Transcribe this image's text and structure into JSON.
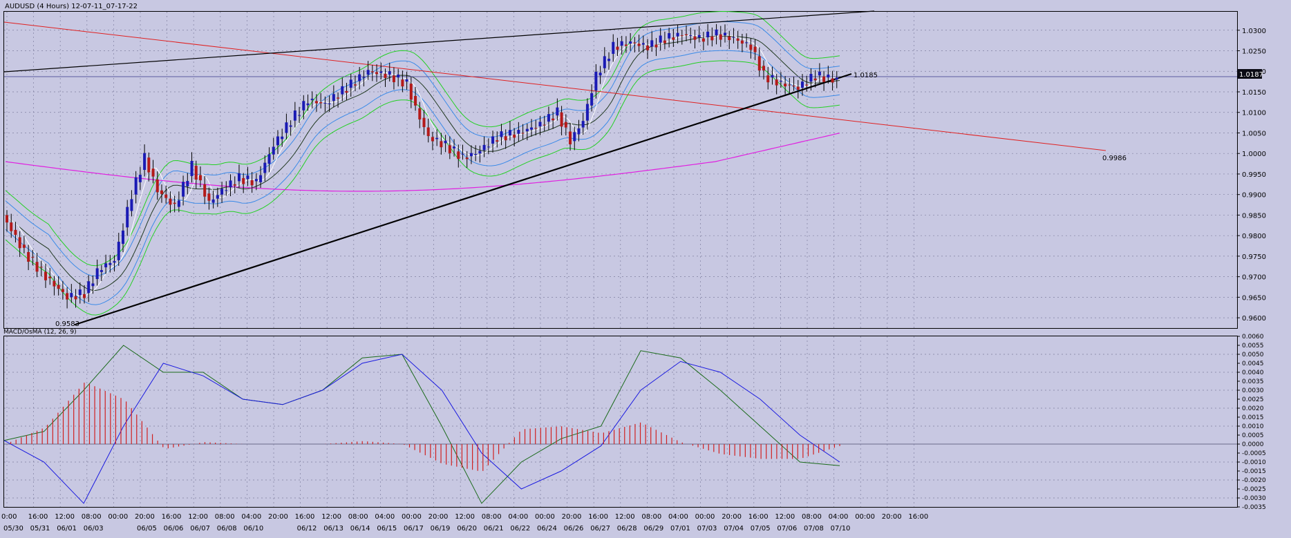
{
  "chart_data": [
    {
      "type": "candlestick",
      "title": "AUDUSD (4 Hours) 12-07-11_07-17-22",
      "ylim": [
        0.9575,
        1.0345
      ],
      "yticks": [
        "1.0300",
        "1.0250",
        "1.0200",
        "1.0150",
        "1.0100",
        "1.0050",
        "1.0000",
        "0.9950",
        "0.9900",
        "0.9850",
        "0.9800",
        "0.9750",
        "0.9700",
        "0.9650",
        "0.9600"
      ],
      "current_price": "1.0187",
      "annotations": [
        "0.9583",
        "1.0185",
        "0.9986"
      ],
      "grid": true,
      "colors": {
        "bull": "#1a1ab4",
        "bear": "#b41a1a",
        "upper_band": "#22d022",
        "inner_band": "#3a8ae8",
        "mid_band": "#203820",
        "ma_white": "#ffffff",
        "ma_long": "#e020e0",
        "trend_red": "#e02020",
        "trendline": "#000000"
      }
    },
    {
      "type": "macd",
      "title": "MACD/OsMA (12, 26, 9)",
      "ylim": [
        -0.0035,
        0.006
      ],
      "yticks": [
        "0.0060",
        "0.0055",
        "0.0050",
        "0.0045",
        "0.0040",
        "0.0035",
        "0.0030",
        "0.0025",
        "0.0020",
        "0.0015",
        "0.0010",
        "0.0005",
        "0.0000",
        "-0.0005",
        "-0.0010",
        "-0.0015",
        "-0.0020",
        "-0.0025",
        "-0.0030",
        "-0.0035"
      ],
      "series": [
        {
          "values": [
            0.0002,
            0.0007,
            0.003,
            0.0055,
            0.004,
            0.004,
            0.0025,
            0.0022,
            0.003,
            0.0048,
            0.005,
            0.001,
            -0.0033,
            -0.001,
            0.0003,
            0.001,
            0.0052,
            0.0048,
            0.003,
            0.001,
            -0.001,
            -0.0012
          ],
          "color": "#1a6a1a"
        },
        {
          "values": [
            0.0002,
            -0.001,
            -0.0033,
            0.001,
            0.0045,
            0.0038,
            0.0025,
            0.0022,
            0.003,
            0.0045,
            0.005,
            0.003,
            -0.0005,
            -0.0025,
            -0.0015,
            -0.0001,
            0.003,
            0.0046,
            0.004,
            0.0025,
            0.0005,
            -0.001
          ],
          "color": "#1a1ae0"
        }
      ],
      "colors": {
        "histogram": "#d02020"
      }
    }
  ],
  "x_labels": [
    {
      "time": "0:00",
      "date": "05/30"
    },
    {
      "time": "16:00",
      "date": "05/31"
    },
    {
      "time": "12:00",
      "date": "06/01"
    },
    {
      "time": "08:00",
      "date": "06/03"
    },
    {
      "time": "00:00",
      "date": ""
    },
    {
      "time": "20:00",
      "date": "06/05"
    },
    {
      "time": "16:00",
      "date": "06/06"
    },
    {
      "time": "12:00",
      "date": "06/07"
    },
    {
      "time": "08:00",
      "date": "06/08"
    },
    {
      "time": "04:00",
      "date": "06/10"
    },
    {
      "time": "20:00",
      "date": ""
    },
    {
      "time": "16:00",
      "date": "06/12"
    },
    {
      "time": "12:00",
      "date": "06/13"
    },
    {
      "time": "08:00",
      "date": "06/14"
    },
    {
      "time": "04:00",
      "date": "06/15"
    },
    {
      "time": "00:00",
      "date": "06/17"
    },
    {
      "time": "20:00",
      "date": "06/19"
    },
    {
      "time": "12:00",
      "date": "06/20"
    },
    {
      "time": "08:00",
      "date": "06/21"
    },
    {
      "time": "04:00",
      "date": "06/22"
    },
    {
      "time": "00:00",
      "date": "06/24"
    },
    {
      "time": "20:00",
      "date": "06/26"
    },
    {
      "time": "16:00",
      "date": "06/27"
    },
    {
      "time": "12:00",
      "date": "06/28"
    },
    {
      "time": "08:00",
      "date": "06/29"
    },
    {
      "time": "04:00",
      "date": "07/01"
    },
    {
      "time": "00:00",
      "date": "07/03"
    },
    {
      "time": "20:00",
      "date": "07/04"
    },
    {
      "time": "16:00",
      "date": "07/05"
    },
    {
      "time": "12:00",
      "date": "07/06"
    },
    {
      "time": "08:00",
      "date": "07/08"
    },
    {
      "time": "04:00",
      "date": "07/10"
    },
    {
      "time": "00:00",
      "date": ""
    },
    {
      "time": "20:00",
      "date": ""
    },
    {
      "time": "16:00",
      "date": ""
    }
  ]
}
